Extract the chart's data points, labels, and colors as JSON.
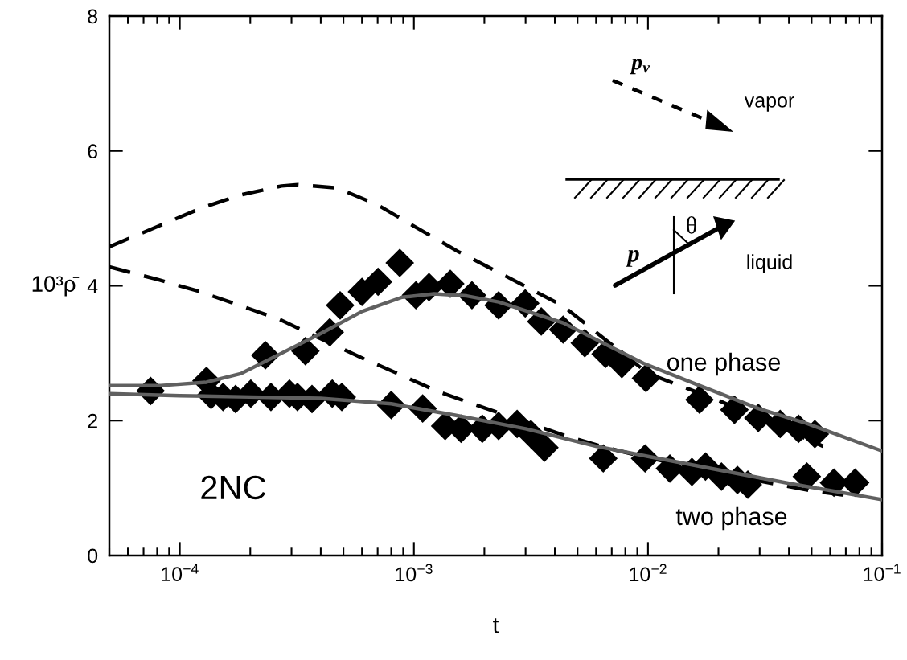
{
  "chart_data": {
    "type": "scatter",
    "xlabel": "t",
    "ylabel": "10³ρ̄",
    "log": "x",
    "grid": false,
    "xlim": [
      5e-05,
      0.1
    ],
    "ylim": [
      0,
      8
    ],
    "xticks": [
      {
        "value": 0.0001,
        "label": "10$^{−4}$"
      },
      {
        "value": 0.001,
        "label": "10$^{−3}$"
      },
      {
        "value": 0.01,
        "label": "10$^{−2}$"
      },
      {
        "value": 0.1,
        "label": "10$^{−1}$"
      }
    ],
    "yticks": [
      0,
      2,
      4,
      6,
      8
    ],
    "annotations": [
      "2NC",
      "p$_{v}$",
      "vapor",
      "θ",
      "p",
      "liquid",
      "one phase",
      "two phase"
    ],
    "series": [
      {
        "type": "line",
        "color": "#000000",
        "line_style": "dashed",
        "x": [
          5e-05,
          8.3e-05,
          0.000123,
          0.000183,
          0.000272,
          0.00032,
          0.00047,
          0.0007,
          0.00104,
          0.00156,
          0.0023,
          0.00434,
          0.01,
          0.02,
          0.056
        ],
        "values": [
          4.58,
          4.9,
          5.15,
          5.35,
          5.48,
          5.5,
          5.45,
          5.2,
          4.85,
          4.5,
          4.2,
          3.7,
          2.7,
          2.3,
          1.62
        ]
      },
      {
        "type": "line",
        "color": "#000000",
        "line_style": "dashed",
        "x": [
          5e-05,
          8.1e-05,
          0.00012,
          0.00018,
          0.000267,
          0.0006,
          0.00089,
          0.00127,
          0.002,
          0.0044,
          0.0066,
          0.01,
          0.02,
          0.048,
          0.074
        ],
        "values": [
          4.28,
          4.09,
          3.92,
          3.71,
          3.5,
          2.93,
          2.67,
          2.43,
          2.19,
          1.78,
          1.6,
          1.45,
          1.22,
          0.97,
          0.88
        ]
      },
      {
        "color": "#000000",
        "marker": "diamond",
        "x": [
          0.00013,
          0.000232,
          0.000344,
          0.000437,
          0.000484,
          0.0006,
          0.000703,
          0.00087,
          0.00102,
          0.00116,
          0.00143,
          0.00177,
          0.0023,
          0.00299,
          0.0035,
          0.00434,
          0.00537,
          0.00659,
          0.00773,
          0.0098,
          0.0166,
          0.0234,
          0.0296,
          0.0367,
          0.044,
          0.0516
        ],
        "values": [
          2.59,
          2.97,
          3.03,
          3.31,
          3.71,
          3.91,
          4.06,
          4.34,
          3.86,
          3.98,
          4.03,
          3.86,
          3.71,
          3.74,
          3.47,
          3.35,
          3.15,
          2.99,
          2.84,
          2.63,
          2.31,
          2.16,
          2.04,
          1.95,
          1.88,
          1.8
        ]
      },
      {
        "color": "#000000",
        "marker": "diamond",
        "x": [
          7.5e-05,
          0.000136,
          0.000153,
          0.000173,
          0.000201,
          0.000245,
          0.000294,
          0.000318,
          0.000367,
          0.000448,
          0.000492,
          0.0008,
          0.00109,
          0.00136,
          0.00159,
          0.00196,
          0.0023,
          0.00276,
          0.00316,
          0.00361,
          0.00644,
          0.00972,
          0.0124,
          0.0154,
          0.0176,
          0.0206,
          0.0241,
          0.0267,
          0.0477,
          0.0623,
          0.0767
        ],
        "values": [
          2.44,
          2.38,
          2.35,
          2.32,
          2.4,
          2.35,
          2.4,
          2.35,
          2.32,
          2.4,
          2.35,
          2.23,
          2.18,
          1.92,
          1.88,
          1.88,
          1.92,
          1.95,
          1.8,
          1.6,
          1.44,
          1.44,
          1.29,
          1.24,
          1.32,
          1.17,
          1.12,
          1.05,
          1.17,
          1.08,
          1.08
        ]
      },
      {
        "type": "line",
        "color": "#606060",
        "line_style": "solid",
        "x": [
          5e-05,
          8.3e-05,
          0.00013,
          0.000183,
          0.000272,
          0.000404,
          0.0006,
          0.00089,
          0.00122,
          0.00168,
          0.0023,
          0.00434,
          0.00957,
          0.0166,
          0.0296,
          0.0466,
          0.1
        ],
        "values": [
          2.52,
          2.52,
          2.57,
          2.7,
          3.0,
          3.3,
          3.62,
          3.83,
          3.88,
          3.85,
          3.76,
          3.45,
          2.85,
          2.52,
          2.18,
          1.97,
          1.55
        ]
      },
      {
        "type": "line",
        "color": "#606060",
        "line_style": "solid",
        "x": [
          5e-05,
          0.0001,
          0.0002,
          0.0004,
          0.0008,
          0.0015,
          0.003,
          0.006,
          0.01,
          0.02,
          0.04,
          0.1
        ],
        "values": [
          2.4,
          2.37,
          2.35,
          2.33,
          2.25,
          2.08,
          1.88,
          1.62,
          1.47,
          1.27,
          1.07,
          0.83
        ]
      }
    ]
  }
}
